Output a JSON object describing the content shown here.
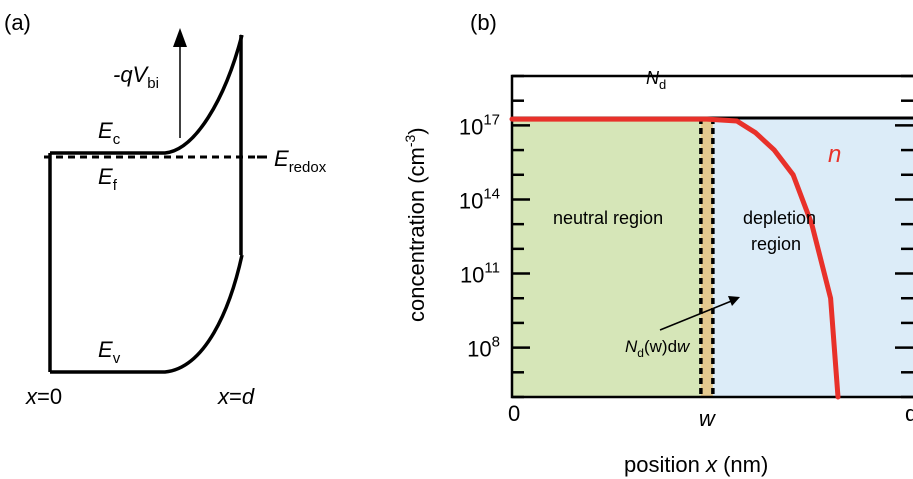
{
  "panel_a": {
    "label": "(a)",
    "qv_main": "-qV",
    "qv_sub": "bi",
    "ec_main": "E",
    "ec_sub": "c",
    "ef_main": "E",
    "ef_sub": "f",
    "ev_main": "E",
    "ev_sub": "v",
    "eredox_main": "E",
    "eredox_sub": "redox",
    "x0_var": "x",
    "x0_rest": "=0",
    "xd_var": "x",
    "xd_eq": "=",
    "xd_d": "d"
  },
  "panel_b": {
    "label": "(b)",
    "ylabel_main": "concentration (cm",
    "ylabel_sup": "-3",
    "ylabel_end": ")",
    "xlabel_main": "position ",
    "xlabel_var": "x",
    "xlabel_end": " (nm)",
    "nd_main": "N",
    "nd_sub": "d",
    "n_label": "n",
    "neutral_label": "neutral region",
    "depletion_line1": "depletion",
    "depletion_line2": "region",
    "ndw_N": "N",
    "ndw_sub": "d",
    "ndw_mid": "(w)d",
    "ndw_end": "w",
    "colors": {
      "neutral": "#d6e6b8",
      "depletion": "#dcecf8",
      "slab": "#e4c98f",
      "n_curve": "#e8312a"
    }
  },
  "chart_data": {
    "type": "line",
    "title": "",
    "xlabel": "position x (nm)",
    "ylabel": "concentration (cm-3)",
    "y_scale": "log",
    "x_ticks": [
      "0",
      "w",
      "d"
    ],
    "y_ticks": [
      {
        "base": "10",
        "exp": "8",
        "value": 100000000.0
      },
      {
        "base": "10",
        "exp": "11",
        "value": 100000000000.0
      },
      {
        "base": "10",
        "exp": "14",
        "value": 100000000000000.0
      },
      {
        "base": "10",
        "exp": "17",
        "value": 1e+17
      }
    ],
    "ylim": [
      1000000.0,
      1e+19
    ],
    "xlim": [
      0,
      1.07
    ],
    "w": 0.52,
    "series": [
      {
        "name": "Nd",
        "x": [
          0,
          1.07
        ],
        "y": [
          2e+17,
          2e+17
        ]
      },
      {
        "name": "n",
        "x": [
          0,
          0.52,
          0.6,
          0.65,
          0.7,
          0.75,
          0.8,
          0.85,
          0.87
        ],
        "y": [
          1.8e+17,
          1.8e+17,
          1.5e+17,
          5e+16,
          1e+16,
          1000000000000000.0,
          10000000000000.0,
          10000000000.0,
          1000000.0
        ]
      }
    ]
  }
}
